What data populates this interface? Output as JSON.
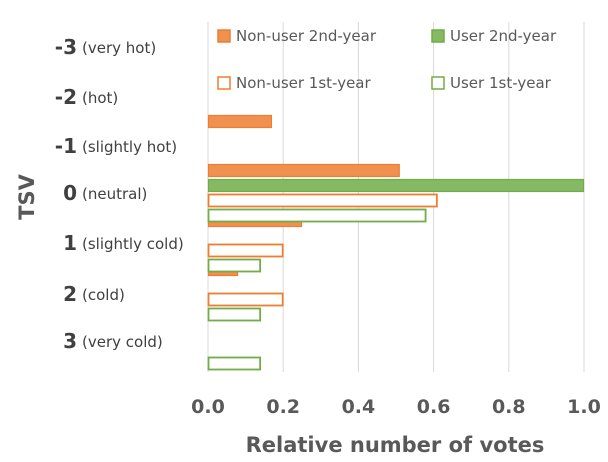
{
  "chart_data": {
    "type": "bar",
    "orientation": "horizontal",
    "title": "",
    "xlabel": "Relative number of votes",
    "ylabel": "TSV",
    "xlim": [
      0,
      1.0
    ],
    "xticks": [
      "0.0",
      "0.2",
      "0.4",
      "0.6",
      "0.8",
      "1.0"
    ],
    "grid": true,
    "legend_position": "top-right",
    "categories": [
      {
        "value": "-3",
        "desc": "(very hot)"
      },
      {
        "value": "-2",
        "desc": "(hot)"
      },
      {
        "value": "-1",
        "desc": "(slightly hot)"
      },
      {
        "value": "0",
        "desc": "(neutral)"
      },
      {
        "value": "1",
        "desc": "(slightly cold)"
      },
      {
        "value": "2",
        "desc": "(cold)"
      },
      {
        "value": "3",
        "desc": "(very cold)"
      }
    ],
    "series": [
      {
        "name": "Non-user 2nd-year",
        "color": "#ed7d31",
        "fill": "solid",
        "values": [
          0,
          0,
          0.17,
          0.51,
          0.25,
          0.08,
          0
        ]
      },
      {
        "name": "User 2nd-year",
        "color": "#70ad47",
        "fill": "solid",
        "values": [
          0,
          0,
          0,
          1.0,
          0,
          0,
          0
        ]
      },
      {
        "name": "Non-user 1st-year",
        "color": "#ed7d31",
        "fill": "outline",
        "values": [
          0,
          0,
          0,
          0.61,
          0.2,
          0.2,
          0
        ]
      },
      {
        "name": "User 1st-year",
        "color": "#70ad47",
        "fill": "outline",
        "values": [
          0,
          0,
          0,
          0.58,
          0.14,
          0.14,
          0.14
        ]
      }
    ]
  }
}
